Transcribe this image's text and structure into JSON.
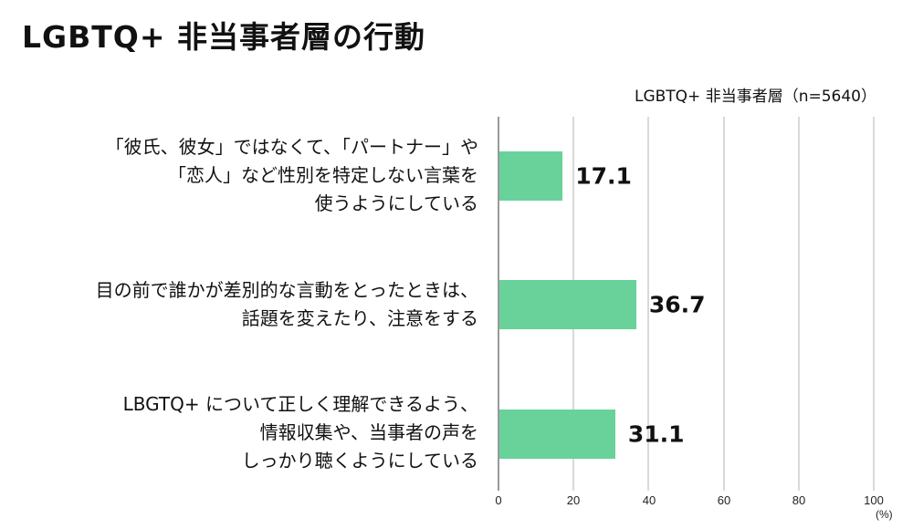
{
  "title": "LGBTQ+ 非当事者層の行動",
  "series_label": "LGBTQ+ 非当事者層（n=5640）",
  "colors": {
    "bar": "#68d29a",
    "gridline": "#d9d9d9",
    "axis": "#9a9a9a",
    "text": "#111111"
  },
  "categories": [
    {
      "lines": [
        "「彼氏、彼女」ではなくて、「パートナー」や",
        "「恋人」など性別を特定しない言葉を",
        "使うようにしている"
      ],
      "value": 17.1,
      "value_label": "17.1"
    },
    {
      "lines": [
        "目の前で誰かが差別的な言動をとったときは、",
        "話題を変えたり、注意をする"
      ],
      "value": 36.7,
      "value_label": "36.7"
    },
    {
      "lines": [
        "LBGTQ+ について正しく理解できるよう、",
        "情報収集や、当事者の声を",
        "しっかり聴くようにしている"
      ],
      "value": 31.1,
      "value_label": "31.1"
    }
  ],
  "x_axis": {
    "ticks": [
      "0",
      "20",
      "40",
      "60",
      "80",
      "100"
    ],
    "unit": "(%)"
  },
  "chart_data": {
    "type": "bar",
    "orientation": "horizontal",
    "title": "LGBTQ+ 非当事者層の行動",
    "categories": [
      "「彼氏、彼女」ではなくて、「パートナー」や「恋人」など性別を特定しない言葉を使うようにしている",
      "目の前で誰かが差別的な言動をとったときは、話題を変えたり、注意をする",
      "LBGTQ+ について正しく理解できるよう、情報収集や、当事者の声をしっかり聴くようにしている"
    ],
    "series": [
      {
        "name": "LGBTQ+ 非当事者層（n=5640）",
        "values": [
          17.1,
          36.7,
          31.1
        ]
      }
    ],
    "xlabel": "(%)",
    "ylabel": "",
    "xlim": [
      0,
      100
    ],
    "xticks": [
      0,
      20,
      40,
      60,
      80,
      100
    ],
    "grid": "vertical",
    "legend_position": "top-right",
    "data_labels": true
  }
}
